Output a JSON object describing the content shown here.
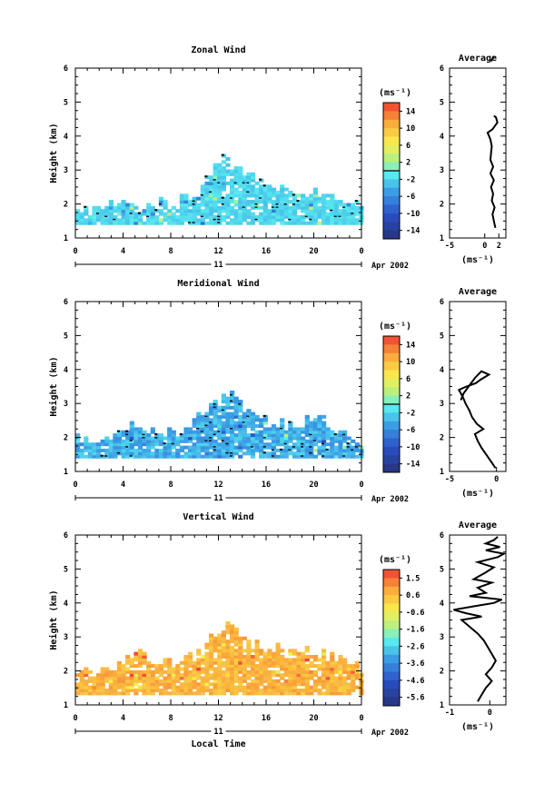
{
  "chart_data": [
    {
      "type": "heatmap",
      "title": "Zonal Wind",
      "xlabel": "",
      "ylabel": "Height (km)",
      "xlim": [
        0,
        24
      ],
      "ylim": [
        1,
        6
      ],
      "x_ticks": [
        "0",
        "4",
        "8",
        "12",
        "16",
        "20",
        "0"
      ],
      "y_ticks": [
        "1",
        "2",
        "3",
        "4",
        "5",
        "6"
      ],
      "date_day": "11",
      "date_label": "Apr 2002",
      "colorbar": {
        "unit": "(ms⁻¹)",
        "labels": [
          "14",
          "10",
          "6",
          "2",
          "-2",
          "-6",
          "-10",
          "-14"
        ],
        "range": [
          -16,
          16
        ],
        "zero_line": true
      },
      "coverage": [
        {
          "hour": 0,
          "top_km": 1.7
        },
        {
          "hour": 2,
          "top_km": 1.9
        },
        {
          "hour": 4,
          "top_km": 1.9
        },
        {
          "hour": 6,
          "top_km": 1.9
        },
        {
          "hour": 8,
          "top_km": 2.0
        },
        {
          "hour": 10,
          "top_km": 2.2
        },
        {
          "hour": 11,
          "top_km": 3.0
        },
        {
          "hour": 12,
          "top_km": 3.3
        },
        {
          "hour": 13,
          "top_km": 3.2
        },
        {
          "hour": 14,
          "top_km": 3.0
        },
        {
          "hour": 15,
          "top_km": 2.8
        },
        {
          "hour": 16,
          "top_km": 2.5
        },
        {
          "hour": 18,
          "top_km": 2.4
        },
        {
          "hour": 20,
          "top_km": 2.3
        },
        {
          "hour": 22,
          "top_km": 2.2
        },
        {
          "hour": 24,
          "top_km": 1.9
        }
      ],
      "bottom_km": 1.4,
      "values_dominant_ms": [
        -3,
        -1
      ],
      "average_profile": {
        "title": "Average",
        "xlabel": "(ms⁻¹)",
        "xlim": [
          -5,
          3
        ],
        "x_ticks": [
          "-5",
          "0"
        ],
        "x_ticks_extra": [
          "2"
        ],
        "y_ticks": [
          "1",
          "2",
          "3",
          "4",
          "5",
          "6"
        ],
        "points": [
          [
            1.5,
            1.3
          ],
          [
            1.3,
            1.5
          ],
          [
            1.1,
            1.7
          ],
          [
            1.4,
            1.9
          ],
          [
            1.0,
            2.1
          ],
          [
            1.2,
            2.3
          ],
          [
            0.9,
            2.5
          ],
          [
            1.3,
            2.7
          ],
          [
            0.8,
            2.9
          ],
          [
            1.2,
            3.1
          ],
          [
            0.8,
            3.3
          ],
          [
            0.9,
            3.5
          ],
          [
            1.0,
            3.7
          ],
          [
            0.8,
            3.9
          ],
          [
            0.6,
            4.0
          ],
          [
            0.4,
            4.1
          ],
          [
            1.1,
            4.2
          ],
          [
            1.8,
            4.4
          ],
          [
            1.6,
            4.55
          ],
          [
            1.3,
            4.6
          ]
        ],
        "points_upper": [
          [
            0.9,
            6.2
          ],
          [
            1.3,
            6.35
          ]
        ]
      }
    },
    {
      "type": "heatmap",
      "title": "Meridional Wind",
      "xlabel": "",
      "ylabel": "Height (km)",
      "xlim": [
        0,
        24
      ],
      "ylim": [
        1,
        6
      ],
      "x_ticks": [
        "0",
        "4",
        "8",
        "12",
        "16",
        "20",
        "0"
      ],
      "y_ticks": [
        "1",
        "2",
        "3",
        "4",
        "5",
        "6"
      ],
      "date_day": "11",
      "date_label": "Apr 2002",
      "colorbar": {
        "unit": "(ms⁻¹)",
        "labels": [
          "14",
          "10",
          "6",
          "2",
          "-2",
          "-6",
          "-10",
          "-14"
        ],
        "range": [
          -16,
          16
        ],
        "zero_line": true
      },
      "coverage": [
        {
          "hour": 0,
          "top_km": 1.9
        },
        {
          "hour": 2,
          "top_km": 2.0
        },
        {
          "hour": 4,
          "top_km": 2.2
        },
        {
          "hour": 5,
          "top_km": 2.5
        },
        {
          "hour": 6,
          "top_km": 2.2
        },
        {
          "hour": 8,
          "top_km": 2.1
        },
        {
          "hour": 10,
          "top_km": 2.4
        },
        {
          "hour": 11,
          "top_km": 3.0
        },
        {
          "hour": 12,
          "top_km": 3.3
        },
        {
          "hour": 13,
          "top_km": 3.3
        },
        {
          "hour": 14,
          "top_km": 2.9
        },
        {
          "hour": 15,
          "top_km": 2.7
        },
        {
          "hour": 16,
          "top_km": 2.4
        },
        {
          "hour": 18,
          "top_km": 2.3
        },
        {
          "hour": 20,
          "top_km": 2.6
        },
        {
          "hour": 22,
          "top_km": 2.2
        },
        {
          "hour": 24,
          "top_km": 1.9
        }
      ],
      "bottom_km": 1.4,
      "values_dominant_ms": [
        -6,
        -2
      ],
      "average_profile": {
        "title": "Average",
        "xlabel": "(ms⁻¹)",
        "xlim": [
          -5,
          1
        ],
        "x_ticks": [
          "-5",
          "0"
        ],
        "x_ticks_extra": [],
        "y_ticks": [
          "1",
          "2",
          "3",
          "4",
          "5",
          "6"
        ],
        "points": [
          [
            -0.1,
            1.1
          ],
          [
            -0.6,
            1.3
          ],
          [
            -1.1,
            1.5
          ],
          [
            -1.6,
            1.7
          ],
          [
            -2.0,
            1.9
          ],
          [
            -2.3,
            2.1
          ],
          [
            -1.4,
            2.25
          ],
          [
            -2.1,
            2.4
          ],
          [
            -2.6,
            2.6
          ],
          [
            -2.9,
            2.8
          ],
          [
            -3.3,
            3.0
          ],
          [
            -3.6,
            3.2
          ],
          [
            -4.0,
            3.4
          ],
          [
            -3.2,
            3.5
          ],
          [
            -2.2,
            3.6
          ],
          [
            -1.7,
            3.7
          ],
          [
            -0.8,
            3.85
          ],
          [
            -1.6,
            3.95
          ],
          [
            -2.3,
            3.75
          ],
          [
            -3.5,
            3.3
          ],
          [
            -3.8,
            3.1
          ]
        ],
        "points_upper": []
      }
    },
    {
      "type": "heatmap",
      "title": "Vertical Wind",
      "xlabel": "Local Time",
      "ylabel": "Height (km)",
      "xlim": [
        0,
        24
      ],
      "ylim": [
        1,
        6
      ],
      "x_ticks": [
        "0",
        "4",
        "8",
        "12",
        "16",
        "20",
        "0"
      ],
      "y_ticks": [
        "1",
        "2",
        "3",
        "4",
        "5",
        "6"
      ],
      "date_day": "11",
      "date_label": "Apr 2002",
      "colorbar": {
        "unit": "(ms⁻¹)",
        "labels": [
          "1.5",
          "0.6",
          "-0.6",
          "-1.6",
          "-2.6",
          "-3.6",
          "-4.6",
          "-5.6"
        ],
        "range": [
          -6,
          2
        ],
        "zero_line": false
      },
      "coverage": [
        {
          "hour": 0,
          "top_km": 1.9
        },
        {
          "hour": 2,
          "top_km": 2.0
        },
        {
          "hour": 4,
          "top_km": 2.1
        },
        {
          "hour": 5,
          "top_km": 2.7
        },
        {
          "hour": 6,
          "top_km": 2.2
        },
        {
          "hour": 8,
          "top_km": 2.2
        },
        {
          "hour": 10,
          "top_km": 2.4
        },
        {
          "hour": 11,
          "top_km": 2.9
        },
        {
          "hour": 12,
          "top_km": 3.3
        },
        {
          "hour": 13,
          "top_km": 3.4
        },
        {
          "hour": 14,
          "top_km": 3.0
        },
        {
          "hour": 15,
          "top_km": 2.8
        },
        {
          "hour": 16,
          "top_km": 2.6
        },
        {
          "hour": 18,
          "top_km": 2.5
        },
        {
          "hour": 20,
          "top_km": 2.5
        },
        {
          "hour": 22,
          "top_km": 2.3
        },
        {
          "hour": 24,
          "top_km": 2.0
        }
      ],
      "bottom_km": 1.3,
      "values_dominant_ms": [
        0.2,
        1.0
      ],
      "average_profile": {
        "title": "Average",
        "xlabel": "(ms⁻¹)",
        "xlim": [
          -1,
          0.4
        ],
        "x_ticks": [
          "-1",
          "0"
        ],
        "x_ticks_extra": [],
        "y_ticks": [
          "1",
          "2",
          "3",
          "4",
          "5",
          "6"
        ],
        "points": [
          [
            -0.3,
            1.1
          ],
          [
            -0.2,
            1.3
          ],
          [
            -0.1,
            1.5
          ],
          [
            0.05,
            1.7
          ],
          [
            -0.1,
            1.9
          ],
          [
            0.05,
            2.1
          ],
          [
            0.15,
            2.3
          ],
          [
            0.05,
            2.5
          ],
          [
            -0.05,
            2.7
          ],
          [
            -0.15,
            2.9
          ],
          [
            -0.3,
            3.1
          ],
          [
            -0.5,
            3.3
          ],
          [
            -0.7,
            3.5
          ],
          [
            -0.2,
            3.6
          ],
          [
            -0.6,
            3.7
          ],
          [
            -0.9,
            3.8
          ],
          [
            -0.4,
            3.9
          ],
          [
            0.1,
            4.0
          ],
          [
            0.3,
            4.1
          ],
          [
            -0.5,
            4.2
          ],
          [
            -0.1,
            4.3
          ],
          [
            -0.3,
            4.45
          ],
          [
            0.05,
            4.6
          ],
          [
            -0.4,
            4.7
          ],
          [
            -0.1,
            4.9
          ],
          [
            0.1,
            5.05
          ],
          [
            -0.3,
            5.2
          ],
          [
            0.2,
            5.35
          ],
          [
            0.35,
            5.45
          ],
          [
            -0.1,
            5.55
          ],
          [
            0.25,
            5.65
          ],
          [
            -0.1,
            5.75
          ],
          [
            0.1,
            5.85
          ],
          [
            0.2,
            5.95
          ]
        ],
        "points_upper": []
      }
    }
  ]
}
